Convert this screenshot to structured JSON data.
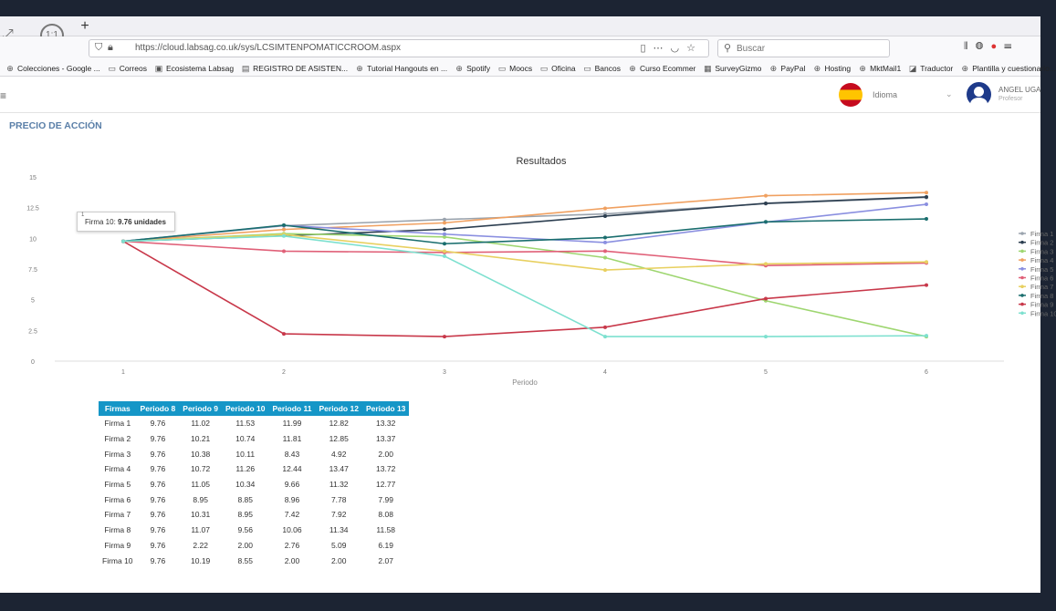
{
  "browser": {
    "new_tab": "+",
    "url": "https://cloud.labsag.co.uk/sys/LCSIMTENPOMATICCROOM.aspx",
    "search_placeholder": "Buscar",
    "zoom_label": "1:1"
  },
  "bookmarks": [
    {
      "label": "Colecciones - Google ...",
      "icon": "globe-icon"
    },
    {
      "label": "Correos",
      "icon": "folder-icon"
    },
    {
      "label": "Ecosistema Labsag",
      "icon": "labsag-icon"
    },
    {
      "label": "REGISTRO DE ASISTEN...",
      "icon": "form-icon"
    },
    {
      "label": "Tutorial Hangouts en ...",
      "icon": "globe-icon"
    },
    {
      "label": "Spotify",
      "icon": "globe-icon"
    },
    {
      "label": "Moocs",
      "icon": "folder-icon"
    },
    {
      "label": "Oficina",
      "icon": "folder-icon"
    },
    {
      "label": "Bancos",
      "icon": "folder-icon"
    },
    {
      "label": "Curso Ecommer",
      "icon": "globe-icon"
    },
    {
      "label": "SurveyGizmo",
      "icon": "sg-icon"
    },
    {
      "label": "PayPal",
      "icon": "globe-icon"
    },
    {
      "label": "Hosting",
      "icon": "globe-icon"
    },
    {
      "label": "MktMail1",
      "icon": "globe-icon"
    },
    {
      "label": "Traductor",
      "icon": "translate-icon"
    },
    {
      "label": "Plantilla y cuestionario...",
      "icon": "globe-icon"
    }
  ],
  "header": {
    "language_label": "Idioma",
    "user_name": "ANGEL UGA",
    "user_role": "Profesor"
  },
  "section_title": "PRECIO DE ACCIÓN",
  "chart_data": {
    "type": "line",
    "title": "Resultados",
    "xlabel": "Periodo",
    "ylabel": "",
    "x": [
      1,
      2,
      3,
      4,
      5,
      6
    ],
    "x_tick_labels": [
      "1",
      "2",
      "3",
      "4",
      "5",
      "6"
    ],
    "ylim": [
      0,
      15
    ],
    "y_ticks": [
      0,
      2.5,
      5,
      7.5,
      10,
      12.5,
      15
    ],
    "y_tick_labels": [
      "0",
      "2.5",
      "5",
      "7.5",
      "10",
      "12.5",
      "15"
    ],
    "legend_position": "right",
    "series": [
      {
        "name": "Firma 1",
        "color": "#9aa3ad",
        "values": [
          9.76,
          11.02,
          11.53,
          11.99,
          12.82,
          13.32
        ]
      },
      {
        "name": "Firma 2",
        "color": "#2c3e50",
        "values": [
          9.76,
          10.21,
          10.74,
          11.81,
          12.85,
          13.37
        ]
      },
      {
        "name": "Firma 3",
        "color": "#9ed670",
        "values": [
          9.76,
          10.38,
          10.11,
          8.43,
          4.92,
          2.0
        ]
      },
      {
        "name": "Firma 4",
        "color": "#f0a060",
        "values": [
          9.76,
          10.72,
          11.26,
          12.44,
          13.47,
          13.72
        ]
      },
      {
        "name": "Firma 5",
        "color": "#8a8fe0",
        "values": [
          9.76,
          11.05,
          10.34,
          9.66,
          11.32,
          12.77
        ]
      },
      {
        "name": "Firma 6",
        "color": "#e06078",
        "values": [
          9.76,
          8.95,
          8.85,
          8.96,
          7.78,
          7.99
        ]
      },
      {
        "name": "Firma 7",
        "color": "#e8d060",
        "values": [
          9.76,
          10.31,
          8.95,
          7.42,
          7.92,
          8.08
        ]
      },
      {
        "name": "Firma 8",
        "color": "#1a6e6e",
        "values": [
          9.76,
          11.07,
          9.56,
          10.06,
          11.34,
          11.58
        ]
      },
      {
        "name": "Firma 9",
        "color": "#c8384a",
        "values": [
          9.76,
          2.22,
          2.0,
          2.76,
          5.09,
          6.19
        ]
      },
      {
        "name": "Firma 10",
        "color": "#7de0cf",
        "values": [
          9.76,
          10.19,
          8.55,
          2.0,
          2.0,
          2.07
        ]
      }
    ]
  },
  "tooltip": {
    "marker": "1",
    "series": "Firma 10:",
    "value": "9.76 unidades"
  },
  "table": {
    "headers": [
      "Firmas",
      "Periodo 8",
      "Periodo 9",
      "Periodo 10",
      "Periodo 11",
      "Periodo 12",
      "Periodo 13"
    ],
    "rows": [
      [
        "Firma 1",
        "9.76",
        "11.02",
        "11.53",
        "11.99",
        "12.82",
        "13.32"
      ],
      [
        "Firma 2",
        "9.76",
        "10.21",
        "10.74",
        "11.81",
        "12.85",
        "13.37"
      ],
      [
        "Firma 3",
        "9.76",
        "10.38",
        "10.11",
        "8.43",
        "4.92",
        "2.00"
      ],
      [
        "Firma 4",
        "9.76",
        "10.72",
        "11.26",
        "12.44",
        "13.47",
        "13.72"
      ],
      [
        "Firma 5",
        "9.76",
        "11.05",
        "10.34",
        "9.66",
        "11.32",
        "12.77"
      ],
      [
        "Firma 6",
        "9.76",
        "8.95",
        "8.85",
        "8.96",
        "7.78",
        "7.99"
      ],
      [
        "Firma 7",
        "9.76",
        "10.31",
        "8.95",
        "7.42",
        "7.92",
        "8.08"
      ],
      [
        "Firma 8",
        "9.76",
        "11.07",
        "9.56",
        "10.06",
        "11.34",
        "11.58"
      ],
      [
        "Firma 9",
        "9.76",
        "2.22",
        "2.00",
        "2.76",
        "5.09",
        "6.19"
      ],
      [
        "Firma 10",
        "9.76",
        "10.19",
        "8.55",
        "2.00",
        "2.00",
        "2.07"
      ]
    ]
  }
}
